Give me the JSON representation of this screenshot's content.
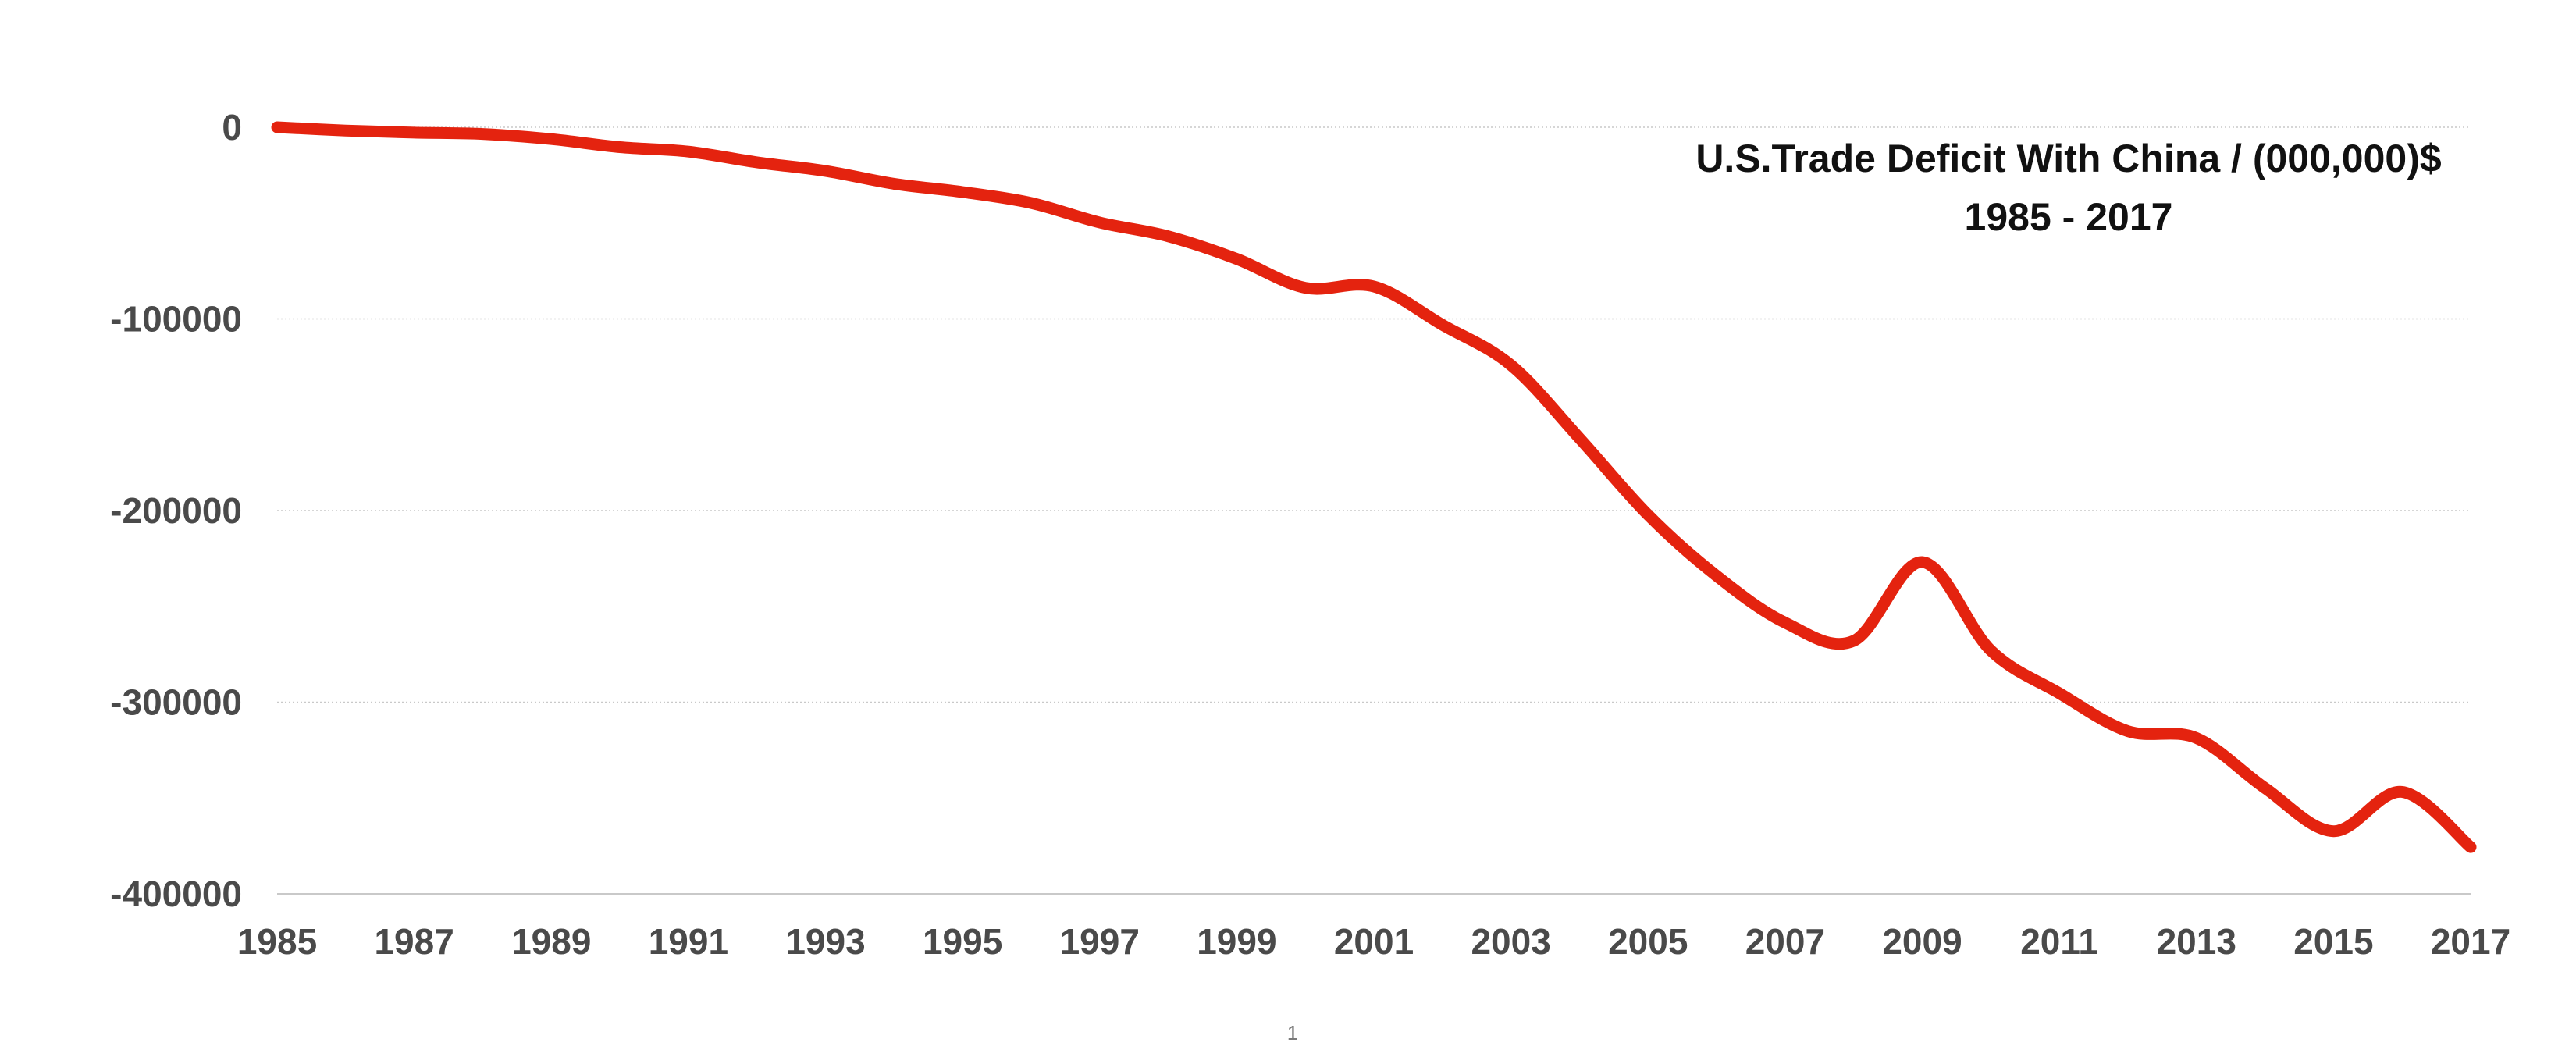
{
  "chart_data": {
    "type": "line",
    "title": "U.S.Trade Deficit With China / (000,000)$",
    "subtitle": "1985 - 2017",
    "xlabel": "",
    "ylabel": "",
    "x": [
      1985,
      1986,
      1987,
      1988,
      1989,
      1990,
      1991,
      1992,
      1993,
      1994,
      1995,
      1996,
      1997,
      1998,
      1999,
      2000,
      2001,
      2002,
      2003,
      2004,
      2005,
      2006,
      2007,
      2008,
      2009,
      2010,
      2011,
      2012,
      2013,
      2014,
      2015,
      2016,
      2017
    ],
    "series": [
      {
        "color": "#e4230f",
        "values": [
          -6,
          -1700,
          -2800,
          -3500,
          -6200,
          -10400,
          -12700,
          -18300,
          -22800,
          -29500,
          -33800,
          -39500,
          -49700,
          -56900,
          -68700,
          -83800,
          -83100,
          -103100,
          -124100,
          -162300,
          -202300,
          -234100,
          -258500,
          -268000,
          -226900,
          -273000,
          -295300,
          -315100,
          -318700,
          -344800,
          -367300,
          -346800,
          -375600
        ]
      }
    ],
    "xticks": [
      "1985",
      "1987",
      "1989",
      "1991",
      "1993",
      "1995",
      "1997",
      "1999",
      "2001",
      "2003",
      "2005",
      "2007",
      "2009",
      "2011",
      "2013",
      "2015",
      "2017"
    ],
    "yticks": [
      "0",
      "-100000",
      "-200000",
      "-300000",
      "-400000"
    ],
    "xlim": [
      1985,
      2017
    ],
    "ylim": [
      -400000,
      0
    ],
    "grid": true,
    "legend": "none"
  },
  "footer": {
    "page_number": "1"
  }
}
